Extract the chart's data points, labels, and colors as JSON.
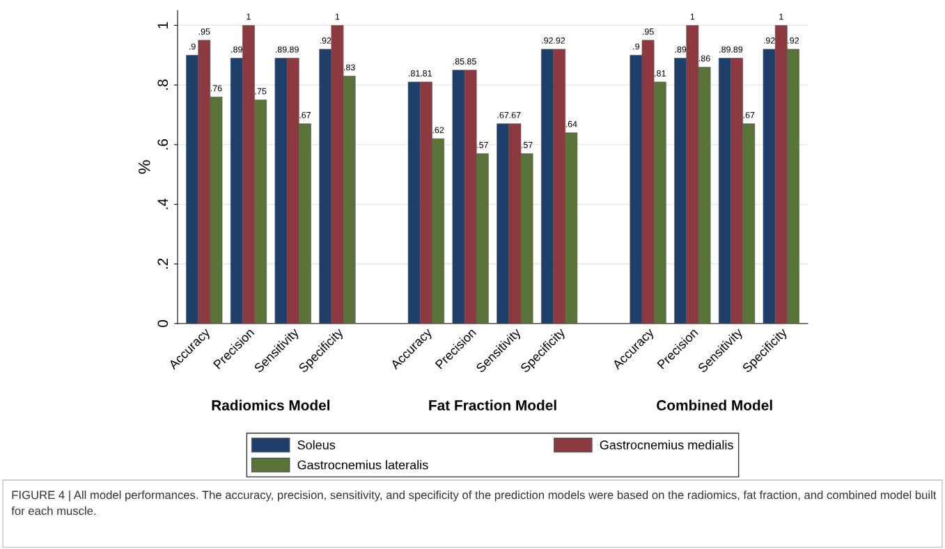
{
  "chart_data": {
    "type": "bar",
    "ylabel": "%",
    "categories": [
      "Accuracy",
      "Precision",
      "Sensitivity",
      "Specificity",
      null,
      "Accuracy",
      "Precision",
      "Sensitivity",
      "Specificity",
      null,
      "Accuracy",
      "Precision",
      "Sensitivity",
      "Specificity"
    ],
    "series": [
      {
        "name": "Soleus",
        "color": "#1f3f6b",
        "values": [
          0.9,
          0.89,
          0.89,
          0.92,
          null,
          0.81,
          0.85,
          0.67,
          0.92,
          null,
          0.9,
          0.89,
          0.89,
          0.92
        ],
        "value_labels": [
          ".9",
          ".89",
          ".89",
          ".92",
          null,
          ".81",
          ".85",
          ".67",
          ".92",
          null,
          ".9",
          ".89",
          ".89",
          ".92"
        ]
      },
      {
        "name": "Gastrocnemius medialis",
        "color": "#8c3a40",
        "values": [
          0.95,
          1,
          0.89,
          1,
          null,
          0.81,
          0.85,
          0.67,
          0.92,
          null,
          0.95,
          1,
          0.89,
          1
        ],
        "value_labels": [
          ".95",
          "1",
          ".89",
          "1",
          null,
          ".81",
          ".85",
          ".67",
          ".92",
          null,
          ".95",
          "1",
          ".89",
          "1"
        ]
      },
      {
        "name": "Gastrocnemius lateralis",
        "color": "#5a7338",
        "values": [
          0.76,
          0.75,
          0.67,
          0.83,
          null,
          0.62,
          0.57,
          0.57,
          0.64,
          null,
          0.81,
          0.86,
          0.67,
          0.92
        ],
        "value_labels": [
          ".76",
          ".75",
          ".67",
          ".83",
          null,
          ".62",
          ".57",
          ".57",
          ".64",
          null,
          ".81",
          ".86",
          ".67",
          ".92"
        ]
      }
    ],
    "ylim": [
      0,
      1.05
    ],
    "yticks": [
      0,
      {
        "value": 0.2,
        "label": ".2"
      },
      {
        "value": 0.4,
        "label": ".4"
      },
      {
        "value": 0.6,
        "label": ".6"
      },
      {
        "value": 0.8,
        "label": ".8"
      },
      1
    ],
    "grid": "y",
    "legend": "bottom",
    "annotations": [
      "Radiomics Model",
      "Fat Fraction Model",
      "Combined Model",
      "FIGURE 4 | All model performances. The accuracy, precision, sensitivity, and specificity of the prediction models were based on the radiomics, fat fraction, and combined model built for each muscle."
    ]
  }
}
